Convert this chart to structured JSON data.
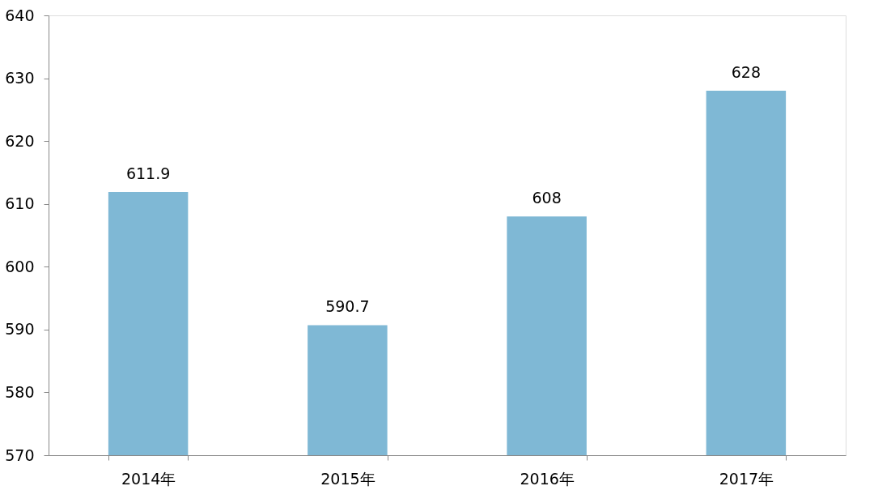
{
  "chart_data": {
    "type": "bar",
    "categories": [
      "2014年",
      "2015年",
      "2016年",
      "2017年"
    ],
    "values": [
      611.9,
      590.7,
      608,
      628
    ],
    "color": "#7fb8d5",
    "ylim": [
      570,
      640
    ],
    "yticks": [
      570,
      580,
      590,
      600,
      610,
      620,
      630,
      640
    ],
    "data_labels": true,
    "grid": false
  }
}
